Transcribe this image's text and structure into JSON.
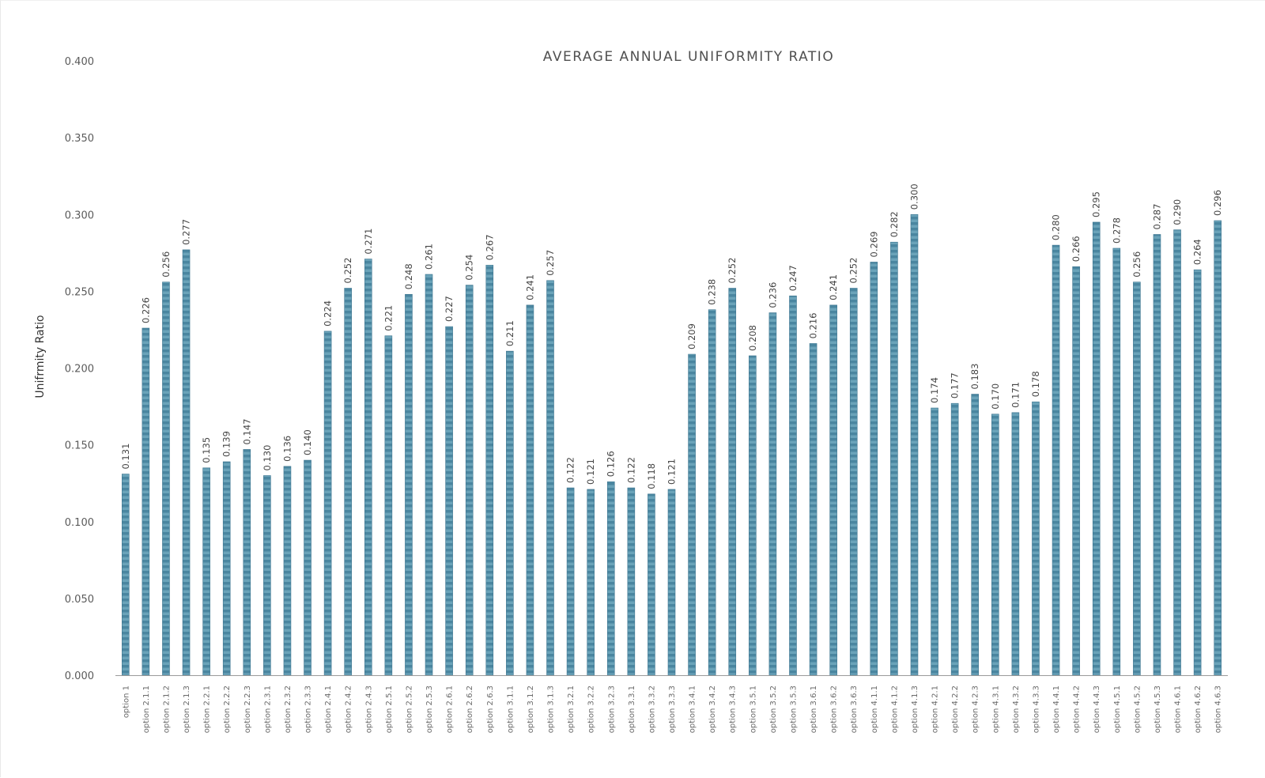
{
  "chart_data": {
    "type": "bar",
    "title": "AVERAGE ANNUAL UNIFORMITY RATIO",
    "xlabel": "",
    "ylabel": "Unifrmity Ratio",
    "ylim": [
      0,
      0.4
    ],
    "yticks": [
      "0.000",
      "0.050",
      "0.100",
      "0.150",
      "0.200",
      "0.250",
      "0.300",
      "0.350",
      "0.400"
    ],
    "grid": false,
    "legend": "none",
    "bar_color": "#4a86a0",
    "bar_stripe_color": "#6aa3b9",
    "categories": [
      "option 1",
      "option 2.1.1",
      "option 2.1.2",
      "option 2.1.3",
      "option 2.2.1",
      "option 2.2.2",
      "option 2.2.3",
      "option 2.3.1",
      "option 2.3.2",
      "option 2.3.3",
      "option 2.4.1",
      "option 2.4.2",
      "option 2.4.3",
      "option 2.5.1",
      "option 2.5.2",
      "option 2.5.3",
      "option 2.6.1",
      "option 2.6.2",
      "option 2.6.3",
      "option 3.1.1",
      "option 3.1.2",
      "option 3.1.3",
      "option 3.2.1",
      "option 3.2.2",
      "option 3.2.3",
      "option 3.3.1",
      "option 3.3.2",
      "option 3.3.3",
      "option 3.4.1",
      "option 3.4.2",
      "option 3.4.3",
      "option 3.5.1",
      "option 3.5.2",
      "option 3.5.3",
      "option 3.6.1",
      "option 3.6.2",
      "option 3.6.3",
      "option 4.1.1",
      "option 4.1.2",
      "option 4.1.3",
      "option 4.2.1",
      "option 4.2.2",
      "option 4.2.3",
      "option 4.3.1",
      "option 4.3.2",
      "option 4.3.3",
      "option 4.4.1",
      "option 4.4.2",
      "option 4.4.3",
      "option 4.5.1",
      "option 4.5.2",
      "option 4.5.3",
      "option 4.6.1",
      "option 4.6.2",
      "option 4.6.3"
    ],
    "values": [
      0.131,
      0.226,
      0.256,
      0.277,
      0.135,
      0.139,
      0.147,
      0.13,
      0.136,
      0.14,
      0.224,
      0.252,
      0.271,
      0.221,
      0.248,
      0.261,
      0.227,
      0.254,
      0.267,
      0.211,
      0.241,
      0.257,
      0.122,
      0.121,
      0.126,
      0.122,
      0.118,
      0.121,
      0.209,
      0.238,
      0.252,
      0.208,
      0.236,
      0.247,
      0.216,
      0.241,
      0.252,
      0.269,
      0.282,
      0.3,
      0.174,
      0.177,
      0.183,
      0.17,
      0.171,
      0.178,
      0.28,
      0.266,
      0.295,
      0.278,
      0.256,
      0.287,
      0.29,
      0.264,
      0.296
    ],
    "data_labels": [
      "0.131",
      "0.226",
      "0.256",
      "0.277",
      "0.135",
      "0.139",
      "0.147",
      "0.130",
      "0.136",
      "0.140",
      "0.224",
      "0.252",
      "0.271",
      "0.221",
      "0.248",
      "0.261",
      "0.227",
      "0.254",
      "0.267",
      "0.211",
      "0.241",
      "0.257",
      "0.122",
      "0.121",
      "0.126",
      "0.122",
      "0.118",
      "0.121",
      "0.209",
      "0.238",
      "0.252",
      "0.208",
      "0.236",
      "0.247",
      "0.216",
      "0.241",
      "0.252",
      "0.269",
      "0.282",
      "0.300",
      "0.174",
      "0.177",
      "0.183",
      "0.170",
      "0.171",
      "0.178",
      "0.280",
      "0.266",
      "0.295",
      "0.278",
      "0.256",
      "0.287",
      "0.290",
      "0.264",
      "0.296"
    ]
  }
}
